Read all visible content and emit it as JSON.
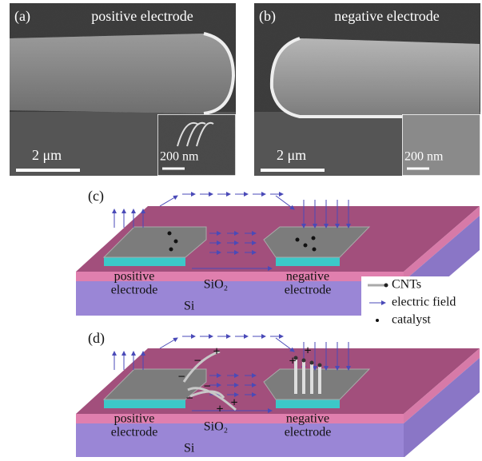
{
  "panels": [
    {
      "label": "(a)",
      "title": "positive electrode",
      "scale_bar": "2 μm",
      "inset_scale_bar": "200 nm"
    },
    {
      "label": "(b)",
      "title": "negative electrode",
      "scale_bar": "2 μm",
      "inset_scale_bar": "200 nm"
    }
  ],
  "schematics": [
    {
      "label": "(c)",
      "left_electrode": [
        "positive",
        "electrode"
      ],
      "oxide": "SiO₂",
      "right_electrode": [
        "negative",
        "electrode"
      ],
      "substrate": "Si"
    },
    {
      "label": "(d)",
      "left_electrode": [
        "positive",
        "electrode"
      ],
      "oxide": "SiO₂",
      "right_electrode": [
        "negative",
        "electrode"
      ],
      "substrate": "Si"
    }
  ],
  "charge_signs": {
    "positive": "+",
    "negative": "−"
  },
  "legend": [
    "CNTs",
    "electric field",
    "catalyst"
  ]
}
